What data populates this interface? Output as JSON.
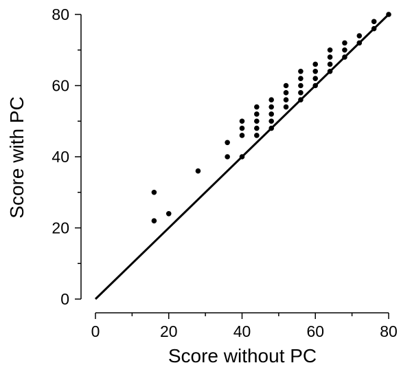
{
  "chart_data": {
    "type": "scatter",
    "xlabel": "Score without PC",
    "ylabel": "Score with PC",
    "xlim": [
      0,
      80
    ],
    "ylim": [
      0,
      80
    ],
    "x_ticks": [
      0,
      20,
      40,
      60,
      80
    ],
    "y_ticks": [
      0,
      20,
      40,
      60,
      80
    ],
    "x_minor_ticks": [
      10,
      30,
      50,
      70
    ],
    "y_minor_ticks": [
      10,
      30,
      50,
      70
    ],
    "grid": false,
    "reference_line": {
      "from": [
        0,
        0
      ],
      "to": [
        80,
        80
      ]
    },
    "points": [
      [
        16,
        22
      ],
      [
        16,
        30
      ],
      [
        20,
        24
      ],
      [
        28,
        36
      ],
      [
        36,
        40
      ],
      [
        36,
        44
      ],
      [
        40,
        40
      ],
      [
        40,
        46
      ],
      [
        40,
        48
      ],
      [
        40,
        50
      ],
      [
        44,
        46
      ],
      [
        44,
        48
      ],
      [
        44,
        50
      ],
      [
        44,
        52
      ],
      [
        44,
        54
      ],
      [
        48,
        48
      ],
      [
        48,
        50
      ],
      [
        48,
        52
      ],
      [
        48,
        54
      ],
      [
        48,
        56
      ],
      [
        52,
        54
      ],
      [
        52,
        56
      ],
      [
        52,
        58
      ],
      [
        52,
        60
      ],
      [
        56,
        56
      ],
      [
        56,
        58
      ],
      [
        56,
        60
      ],
      [
        56,
        62
      ],
      [
        56,
        64
      ],
      [
        60,
        60
      ],
      [
        60,
        62
      ],
      [
        60,
        64
      ],
      [
        60,
        66
      ],
      [
        64,
        64
      ],
      [
        64,
        66
      ],
      [
        64,
        68
      ],
      [
        64,
        70
      ],
      [
        68,
        68
      ],
      [
        68,
        70
      ],
      [
        68,
        72
      ],
      [
        72,
        72
      ],
      [
        72,
        74
      ],
      [
        76,
        76
      ],
      [
        76,
        78
      ],
      [
        80,
        80
      ]
    ],
    "colors": {
      "ink": "#000000",
      "background": "#ffffff"
    }
  }
}
